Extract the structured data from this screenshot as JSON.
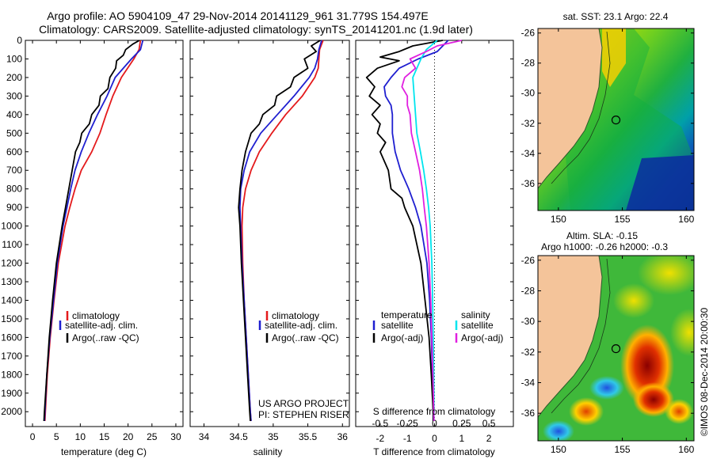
{
  "header": {
    "title_line1": "Argo profile: AO 5904109_47 29-Nov-2014 20141129_961 31.779S 154.497E",
    "title_line2": "Climatology: CARS2009. Satellite-adjusted climatology: synTS_20141201.nc (1.9d later)"
  },
  "colors": {
    "climatology": "#e41a1c",
    "satellite": "#1f1fd0",
    "argo": "#000000",
    "satellite_salinity": "#00e5ee",
    "argo_salinity": "#e020e0",
    "land": "#f4c49a",
    "coast": "#2a5a2a"
  },
  "depth_axis": {
    "ticks": [
      0,
      100,
      200,
      300,
      400,
      500,
      600,
      700,
      800,
      900,
      1000,
      1100,
      1200,
      1300,
      1400,
      1500,
      1600,
      1700,
      1800,
      1900,
      2000
    ],
    "range": [
      0,
      2080
    ]
  },
  "chart_data": [
    {
      "type": "line",
      "id": "temperature",
      "xlabel": "temperature (deg C)",
      "xticks": [
        0,
        5,
        10,
        15,
        20,
        25,
        30
      ],
      "xlim": [
        -1.5,
        31.5
      ],
      "legend": [
        "climatology",
        "satellite-adj. clim.",
        "Argo(..raw -QC)"
      ],
      "series": [
        {
          "name": "climatology",
          "color": "#e41a1c",
          "depth": [
            0,
            50,
            100,
            200,
            300,
            400,
            500,
            600,
            700,
            800,
            900,
            1000,
            1200,
            1400,
            1600,
            1800,
            2000,
            2050
          ],
          "values": [
            22.6,
            22.3,
            21.2,
            18.6,
            16.8,
            15.4,
            14.1,
            12.4,
            10.2,
            8.9,
            7.8,
            6.8,
            5.4,
            4.5,
            3.7,
            3.1,
            2.7,
            2.6
          ]
        },
        {
          "name": "satellite-adj. clim.",
          "color": "#1f1fd0",
          "depth": [
            0,
            50,
            100,
            200,
            300,
            400,
            500,
            600,
            700,
            800,
            900,
            1000,
            1200,
            1400,
            1600,
            1800,
            2000,
            2050
          ],
          "values": [
            23.1,
            22.6,
            20.7,
            17.3,
            15.6,
            13.6,
            11.8,
            10.2,
            8.9,
            8.0,
            7.2,
            6.4,
            5.2,
            4.4,
            3.6,
            3.0,
            2.6,
            2.5
          ]
        },
        {
          "name": "Argo(..raw -QC)",
          "color": "#000000",
          "depth": [
            0,
            20,
            50,
            80,
            110,
            150,
            200,
            260,
            300,
            350,
            400,
            450,
            500,
            550,
            600,
            700,
            800,
            900,
            1000,
            1200,
            1400,
            1600,
            1800,
            2000,
            2050
          ],
          "values": [
            22.4,
            21.0,
            19.5,
            19.0,
            17.6,
            17.4,
            16.2,
            15.8,
            14.2,
            13.9,
            12.4,
            11.9,
            10.3,
            9.9,
            9.0,
            8.3,
            7.6,
            6.9,
            6.2,
            5.0,
            4.2,
            3.5,
            3.0,
            2.5,
            2.4
          ]
        }
      ]
    },
    {
      "type": "line",
      "id": "salinity",
      "xlabel": "salinity",
      "xticks": [
        34,
        34.5,
        35,
        35.5,
        36
      ],
      "xlim": [
        33.8,
        36.1
      ],
      "legend": [
        "climatology",
        "satellite-adj. clim.",
        "Argo(..raw -QC)"
      ],
      "notes": [
        "US ARGO PROJECT",
        "PI: STEPHEN RISER"
      ],
      "series": [
        {
          "name": "climatology",
          "color": "#e41a1c",
          "depth": [
            0,
            50,
            100,
            150,
            200,
            300,
            400,
            500,
            600,
            700,
            800,
            900,
            1000,
            1200,
            1400,
            1600,
            1800,
            2000,
            2050
          ],
          "values": [
            35.72,
            35.67,
            35.66,
            35.65,
            35.6,
            35.42,
            35.18,
            34.98,
            34.8,
            34.68,
            34.6,
            34.56,
            34.55,
            34.56,
            34.58,
            34.61,
            34.64,
            34.67,
            34.68
          ]
        },
        {
          "name": "satellite-adj. clim.",
          "color": "#1f1fd0",
          "depth": [
            0,
            50,
            100,
            150,
            200,
            300,
            400,
            500,
            600,
            700,
            800,
            900,
            1000,
            1200,
            1400,
            1600,
            1800,
            2000,
            2050
          ],
          "values": [
            35.7,
            35.66,
            35.64,
            35.6,
            35.52,
            35.3,
            35.06,
            34.82,
            34.66,
            34.58,
            34.53,
            34.52,
            34.53,
            34.55,
            34.58,
            34.61,
            34.64,
            34.67,
            34.68
          ]
        },
        {
          "name": "Argo(..raw -QC)",
          "color": "#000000",
          "depth": [
            0,
            30,
            60,
            100,
            150,
            200,
            250,
            300,
            350,
            400,
            450,
            500,
            600,
            700,
            800,
            900,
            1000,
            1200,
            1400,
            1600,
            1800,
            2000,
            2050
          ],
          "values": [
            35.68,
            35.55,
            35.62,
            35.45,
            35.5,
            35.3,
            35.25,
            35.05,
            35.02,
            34.85,
            34.8,
            34.68,
            34.6,
            34.55,
            34.52,
            34.5,
            34.52,
            34.54,
            34.57,
            34.6,
            34.63,
            34.66,
            34.67
          ]
        }
      ]
    },
    {
      "type": "line",
      "id": "difference",
      "xlabel": "T difference from climatology",
      "xlabel_top": "S difference from climatology",
      "xticks": [
        -2,
        -1,
        0,
        1,
        2
      ],
      "xticklabels": [
        "-2",
        "-1",
        "0",
        "1",
        "2"
      ],
      "sticks": [
        -0.5,
        -0.25,
        0,
        0.25,
        0.5
      ],
      "sticklabels": [
        "-0.5",
        "-0.25",
        "0",
        "0.25",
        "0.5"
      ],
      "xlim": [
        -2.9,
        2.9
      ],
      "legend_left": [
        "temperature",
        "satellite",
        "Argo(-adj)"
      ],
      "legend_right": [
        "salinity",
        "satellite",
        "Argo(-adj)"
      ],
      "series": [
        {
          "name": "satellite",
          "color": "#1f1fd0",
          "depth": [
            0,
            60,
            100,
            150,
            200,
            250,
            300,
            350,
            400,
            500,
            600,
            700,
            800,
            900,
            1000,
            1200,
            1400,
            1600,
            1800,
            2000,
            2050
          ],
          "values": [
            0.5,
            0.1,
            -0.6,
            -1.3,
            -1.6,
            -1.85,
            -1.8,
            -1.6,
            -1.55,
            -1.55,
            -1.45,
            -1.25,
            -0.95,
            -0.7,
            -0.5,
            -0.28,
            -0.18,
            -0.12,
            -0.08,
            -0.05,
            -0.05
          ]
        },
        {
          "name": "Argo(-adj)",
          "color": "#000000",
          "depth": [
            0,
            30,
            60,
            90,
            110,
            150,
            200,
            250,
            300,
            350,
            400,
            450,
            500,
            550,
            600,
            700,
            800,
            850,
            900,
            1000,
            1200,
            1400,
            1600,
            1800,
            2000,
            2050
          ],
          "values": [
            0.3,
            -0.8,
            -1.3,
            -2.0,
            -1.3,
            -2.1,
            -2.5,
            -2.2,
            -2.4,
            -2.0,
            -2.3,
            -2.0,
            -2.1,
            -1.8,
            -2.0,
            -1.7,
            -1.6,
            -1.2,
            -1.1,
            -0.8,
            -0.5,
            -0.35,
            -0.2,
            -0.12,
            -0.05,
            -0.05
          ]
        },
        {
          "name": "satellite (salinity)",
          "color": "#00e5ee",
          "depth": [
            0,
            50,
            100,
            200,
            300,
            400,
            500,
            600,
            700,
            800,
            900,
            1000,
            1200,
            1400,
            1600,
            1800,
            2000,
            2050
          ],
          "values": [
            0.1,
            -0.3,
            -0.5,
            -0.8,
            -0.75,
            -0.7,
            -0.65,
            -0.52,
            -0.4,
            -0.3,
            -0.22,
            -0.16,
            -0.1,
            -0.07,
            -0.05,
            -0.03,
            -0.02,
            -0.02
          ]
        },
        {
          "name": "Argo(-adj) (salinity)",
          "color": "#e020e0",
          "depth": [
            0,
            30,
            60,
            100,
            150,
            200,
            250,
            300,
            350,
            400,
            500,
            600,
            700,
            800,
            900,
            1000,
            1200,
            1400,
            1600,
            1800,
            2000,
            2050
          ],
          "values": [
            1.0,
            0.1,
            -0.3,
            -0.9,
            -0.7,
            -1.1,
            -1.2,
            -1.0,
            -1.0,
            -0.9,
            -0.85,
            -0.7,
            -0.55,
            -0.45,
            -0.38,
            -0.3,
            -0.2,
            -0.14,
            -0.1,
            -0.06,
            -0.03,
            -0.02
          ]
        }
      ]
    },
    {
      "type": "heatmap",
      "id": "sst_map",
      "title": "sat. SST: 23.1  Argo: 22.4",
      "xticks": [
        150,
        155,
        160
      ],
      "yticks": [
        -26,
        -28,
        -30,
        -32,
        -34,
        -36
      ],
      "xlim": [
        148.4,
        160.6
      ],
      "ylim": [
        -37.8,
        -25.7
      ],
      "float_position": [
        154.497,
        -31.779
      ]
    },
    {
      "type": "heatmap",
      "id": "sla_map",
      "title": "Altim. SLA: -0.15",
      "title2": "Argo h1000: -0.26  h2000: -0.3",
      "xticks": [
        150,
        155,
        160
      ],
      "yticks": [
        -26,
        -28,
        -30,
        -32,
        -34,
        -36
      ],
      "xlim": [
        148.4,
        160.6
      ],
      "ylim": [
        -37.8,
        -25.7
      ],
      "float_position": [
        154.497,
        -31.779
      ]
    }
  ],
  "credit": "©IMOS 08-Dec-2014 20:00:30"
}
